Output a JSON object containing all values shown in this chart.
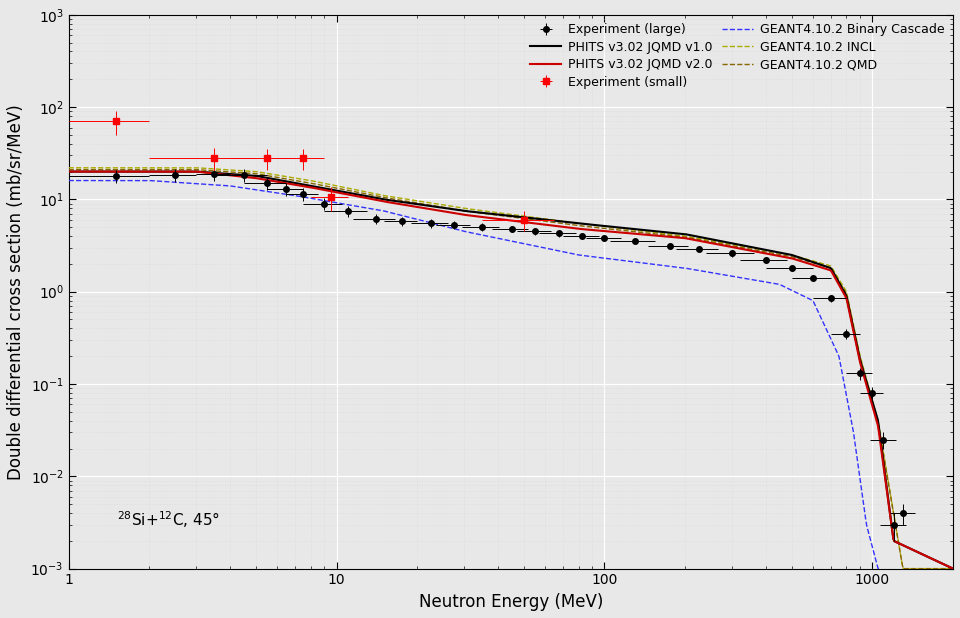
{
  "xlabel": "Neutron Energy (MeV)",
  "ylabel": "Double differential cross section (mb/sr/MeV)",
  "annotation": "$^{28}$Si+$^{12}$C, 45°",
  "xlim": [
    1,
    2000
  ],
  "ylim": [
    0.001,
    1000.0
  ],
  "exp_large_x": [
    1.5,
    2.5,
    3.5,
    4.5,
    5.5,
    6.5,
    7.5,
    9.0,
    11.0,
    14.0,
    17.5,
    22.5,
    27.5,
    35.0,
    45.0,
    55.0,
    67.5,
    82.5,
    100.0,
    130.0,
    175.0,
    225.0,
    300.0,
    400.0,
    500.0,
    600.0,
    700.0,
    800.0,
    900.0,
    1000.0,
    1100.0,
    1200.0,
    1300.0
  ],
  "exp_large_y": [
    18.0,
    18.5,
    19.0,
    18.5,
    15.0,
    13.0,
    11.5,
    9.0,
    7.5,
    6.2,
    5.8,
    5.5,
    5.3,
    5.0,
    4.8,
    4.5,
    4.3,
    4.0,
    3.8,
    3.5,
    3.1,
    2.9,
    2.6,
    2.2,
    1.8,
    1.4,
    0.85,
    0.35,
    0.13,
    0.08,
    0.025,
    0.003,
    0.004
  ],
  "exp_large_xerr_lo": [
    0.5,
    0.5,
    0.5,
    1.0,
    1.0,
    1.0,
    1.0,
    1.5,
    2.0,
    2.5,
    2.5,
    3.5,
    4.0,
    5.5,
    7.0,
    8.0,
    10.5,
    12.5,
    15.0,
    25.0,
    30.0,
    40.0,
    60.0,
    80.0,
    100.0,
    100.0,
    100.0,
    100.0,
    100.0,
    100.0,
    120.0,
    130.0,
    140.0
  ],
  "exp_large_xerr_hi": [
    0.5,
    0.5,
    0.5,
    1.0,
    1.0,
    1.0,
    1.0,
    1.5,
    2.0,
    2.5,
    2.5,
    3.5,
    4.0,
    5.5,
    7.0,
    8.0,
    10.5,
    12.5,
    15.0,
    25.0,
    30.0,
    40.0,
    60.0,
    80.0,
    100.0,
    100.0,
    100.0,
    100.0,
    100.0,
    100.0,
    120.0,
    130.0,
    140.0
  ],
  "exp_large_yerr_lo": [
    3.0,
    3.0,
    3.0,
    3.0,
    2.5,
    2.0,
    1.8,
    1.3,
    1.0,
    0.8,
    0.7,
    0.6,
    0.55,
    0.5,
    0.4,
    0.4,
    0.35,
    0.3,
    0.3,
    0.25,
    0.2,
    0.2,
    0.2,
    0.15,
    0.12,
    0.1,
    0.07,
    0.04,
    0.02,
    0.012,
    0.005,
    0.001,
    0.001
  ],
  "exp_large_yerr_hi": [
    3.0,
    3.0,
    3.0,
    3.0,
    2.5,
    2.0,
    1.8,
    1.3,
    1.0,
    0.8,
    0.7,
    0.6,
    0.55,
    0.5,
    0.4,
    0.4,
    0.35,
    0.3,
    0.3,
    0.25,
    0.2,
    0.2,
    0.2,
    0.15,
    0.12,
    0.1,
    0.07,
    0.04,
    0.02,
    0.012,
    0.005,
    0.001,
    0.001
  ],
  "exp_small_x": [
    1.5,
    3.5,
    5.5,
    7.5,
    9.5,
    50.0
  ],
  "exp_small_y": [
    70.0,
    28.0,
    28.0,
    28.0,
    10.5,
    6.0
  ],
  "exp_small_xerr_lo": [
    0.5,
    1.5,
    1.5,
    1.5,
    1.5,
    15.0
  ],
  "exp_small_xerr_hi": [
    0.5,
    1.5,
    1.5,
    1.5,
    1.5,
    15.0
  ],
  "exp_small_yerr_lo": [
    20.0,
    8.0,
    7.0,
    7.0,
    3.0,
    1.5
  ],
  "exp_small_yerr_hi": [
    20.0,
    8.0,
    7.0,
    7.0,
    3.0,
    1.5
  ],
  "phits_v1_color": "#000000",
  "phits_v2_color": "#cc0000",
  "geant4_binary_color": "#3333ff",
  "geant4_incl_color": "#aaaa00",
  "geant4_qmd_color": "#886600",
  "background_color": "#e8e8e8",
  "grid_major_color": "#ffffff",
  "grid_minor_color": "#d8d8d8"
}
